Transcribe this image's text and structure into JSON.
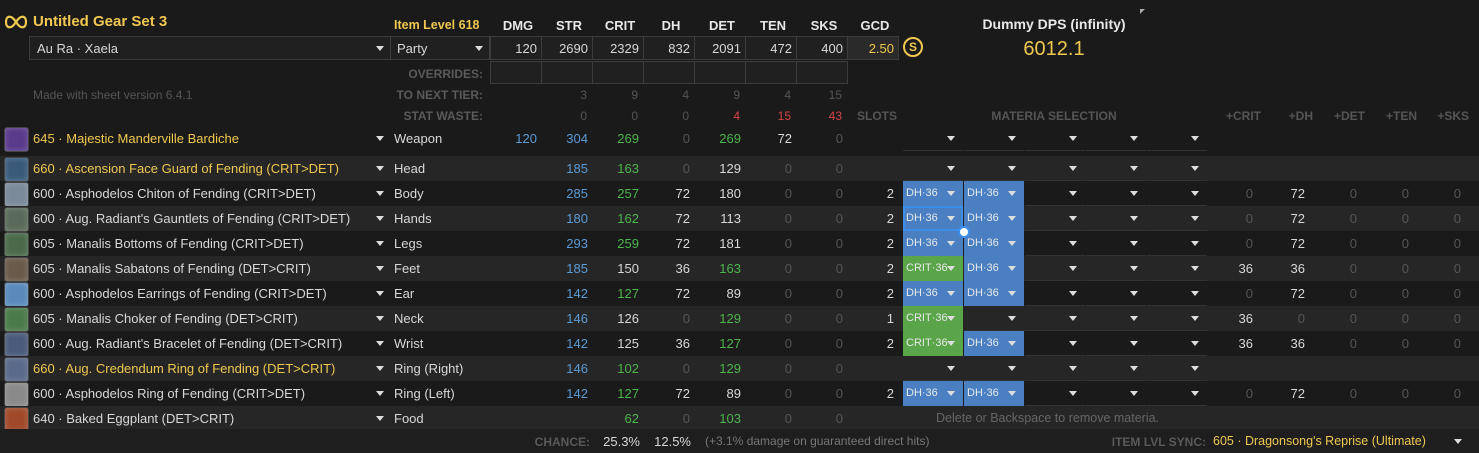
{
  "header": {
    "set_name": "Untitled Gear Set 3",
    "race": "Au Ra · Xaela",
    "party": "Party",
    "sheet_version": "Made with sheet version 6.4.1",
    "item_level": "Item Level 618",
    "stat_headers": [
      "DMG",
      "STR",
      "CRIT",
      "DH",
      "DET",
      "TEN",
      "SKS",
      "GCD"
    ],
    "stat_values": [
      "120",
      "2690",
      "2329",
      "832",
      "2091",
      "472",
      "400",
      "2.50"
    ],
    "overrides_label": "OVERRIDES:",
    "next_tier_label": "TO NEXT TIER:",
    "next_tier_values": [
      "",
      "3",
      "9",
      "4",
      "9",
      "4",
      "15"
    ],
    "stat_waste_label": "STAT WASTE:",
    "stat_waste_values": [
      "",
      "0",
      "0",
      "0",
      "4",
      "15",
      "43"
    ],
    "dps_title": "Dummy DPS (infinity)",
    "dps_value": "6012.1"
  },
  "columns": {
    "slots": "SLOTS",
    "materia_selection": "MATERIA SELECTION",
    "bonus": [
      "+CRIT",
      "+DH",
      "+DET",
      "+TEN",
      "+SKS"
    ]
  },
  "colors": {
    "accent": "#f0c850",
    "dh_materia": "#4a7fc1",
    "crit_materia": "#5aa54a",
    "stat_blue": "#5b9bd5",
    "stat_green": "#4cb54c",
    "stat_red": "#d64545"
  },
  "gear": [
    {
      "name": "645 · Majestic Manderville Bardiche",
      "slot": "Weapon",
      "gold": true,
      "icon": "weapon-icon",
      "dmg": "120",
      "str": "304",
      "crit": "269",
      "dh": "0",
      "det": "269",
      "ten": "72",
      "sks": "0",
      "slots": "",
      "materia": [
        "",
        "",
        "",
        "",
        ""
      ],
      "bonus": [
        "",
        "",
        "",
        "",
        ""
      ]
    },
    {
      "name": "660 · Ascension Face Guard of Fending (CRIT>DET)",
      "slot": "Head",
      "gold": true,
      "icon": "head-icon",
      "dmg": "",
      "str": "185",
      "crit": "163",
      "dh": "0",
      "det": "129",
      "ten": "0",
      "sks": "0",
      "slots": "",
      "materia": [
        "",
        "",
        "",
        "",
        ""
      ],
      "bonus": [
        "",
        "",
        "",
        "",
        ""
      ]
    },
    {
      "name": "600 · Asphodelos Chiton of Fending (CRIT>DET)",
      "slot": "Body",
      "gold": false,
      "icon": "body-icon",
      "dmg": "",
      "str": "285",
      "crit": "257",
      "dh": "72",
      "det": "180",
      "ten": "0",
      "sks": "0",
      "slots": "2",
      "materia": [
        "DH·36",
        "DH·36",
        "",
        "",
        ""
      ],
      "bonus": [
        "0",
        "72",
        "0",
        "0",
        "0"
      ]
    },
    {
      "name": "600 · Aug. Radiant's Gauntlets of Fending (CRIT>DET)",
      "slot": "Hands",
      "gold": false,
      "icon": "hands-icon",
      "dmg": "",
      "str": "180",
      "crit": "162",
      "dh": "72",
      "det": "113",
      "ten": "0",
      "sks": "0",
      "slots": "2",
      "materia": [
        "DH·36",
        "DH·36",
        "",
        "",
        ""
      ],
      "bonus": [
        "0",
        "72",
        "0",
        "0",
        "0"
      ]
    },
    {
      "name": "605 · Manalis Bottoms of Fending (CRIT>DET)",
      "slot": "Legs",
      "gold": false,
      "icon": "legs-icon",
      "dmg": "",
      "str": "293",
      "crit": "259",
      "dh": "72",
      "det": "181",
      "ten": "0",
      "sks": "0",
      "slots": "2",
      "materia": [
        "DH·36",
        "DH·36",
        "",
        "",
        ""
      ],
      "bonus": [
        "0",
        "72",
        "0",
        "0",
        "0"
      ]
    },
    {
      "name": "605 · Manalis Sabatons of Fending (DET>CRIT)",
      "slot": "Feet",
      "gold": false,
      "icon": "feet-icon",
      "dmg": "",
      "str": "185",
      "crit": "150",
      "dh": "36",
      "det": "163",
      "ten": "0",
      "sks": "0",
      "slots": "2",
      "materia": [
        "CRIT·36",
        "DH·36",
        "",
        "",
        ""
      ],
      "bonus": [
        "36",
        "36",
        "0",
        "0",
        "0"
      ]
    },
    {
      "name": "600 · Asphodelos Earrings of Fending (CRIT>DET)",
      "slot": "Ear",
      "gold": false,
      "icon": "ear-icon",
      "dmg": "",
      "str": "142",
      "crit": "127",
      "dh": "72",
      "det": "89",
      "ten": "0",
      "sks": "0",
      "slots": "2",
      "materia": [
        "DH·36",
        "DH·36",
        "",
        "",
        ""
      ],
      "bonus": [
        "0",
        "72",
        "0",
        "0",
        "0"
      ]
    },
    {
      "name": "605 · Manalis Choker of Fending (DET>CRIT)",
      "slot": "Neck",
      "gold": false,
      "icon": "neck-icon",
      "dmg": "",
      "str": "146",
      "crit": "126",
      "dh": "0",
      "det": "129",
      "ten": "0",
      "sks": "0",
      "slots": "1",
      "materia": [
        "CRIT·36",
        "",
        "",
        "",
        ""
      ],
      "bonus": [
        "36",
        "0",
        "0",
        "0",
        "0"
      ]
    },
    {
      "name": "600 · Aug. Radiant's Bracelet of Fending (DET>CRIT)",
      "slot": "Wrist",
      "gold": false,
      "icon": "wrist-icon",
      "dmg": "",
      "str": "142",
      "crit": "125",
      "dh": "36",
      "det": "127",
      "ten": "0",
      "sks": "0",
      "slots": "2",
      "materia": [
        "CRIT·36",
        "DH·36",
        "",
        "",
        ""
      ],
      "bonus": [
        "36",
        "36",
        "0",
        "0",
        "0"
      ]
    },
    {
      "name": "660 · Aug. Credendum Ring of Fending (DET>CRIT)",
      "slot": "Ring (Right)",
      "gold": true,
      "icon": "ring-right-icon",
      "dmg": "",
      "str": "146",
      "crit": "102",
      "dh": "0",
      "det": "129",
      "ten": "0",
      "sks": "0",
      "slots": "",
      "materia": [
        "",
        "",
        "",
        "",
        ""
      ],
      "bonus": [
        "",
        "",
        "",
        "",
        ""
      ]
    },
    {
      "name": "600 · Asphodelos Ring of Fending (CRIT>DET)",
      "slot": "Ring (Left)",
      "gold": false,
      "icon": "ring-left-icon",
      "dmg": "",
      "str": "142",
      "crit": "127",
      "dh": "72",
      "det": "89",
      "ten": "0",
      "sks": "0",
      "slots": "2",
      "materia": [
        "DH·36",
        "DH·36",
        "",
        "",
        ""
      ],
      "bonus": [
        "0",
        "72",
        "0",
        "0",
        "0"
      ]
    },
    {
      "name": "640 · Baked Eggplant (DET>CRIT)",
      "slot": "Food",
      "gold": false,
      "icon": "food-icon",
      "dmg": "",
      "str": "",
      "crit": "62",
      "dh": "0",
      "det": "103",
      "ten": "0",
      "sks": "0",
      "slots": "",
      "materia": [],
      "bonus": []
    }
  ],
  "food_hint": "Delete or Backspace to remove materia.",
  "footer": {
    "chance_label": "CHANCE:",
    "crit_chance": "25.3%",
    "dh_chance": "12.5%",
    "dh_note": "(+3.1% damage on guaranteed direct hits)",
    "sync_label": "ITEM LVL SYNC:",
    "sync_value": "605 · Dragonsong's Reprise (Ultimate)"
  }
}
